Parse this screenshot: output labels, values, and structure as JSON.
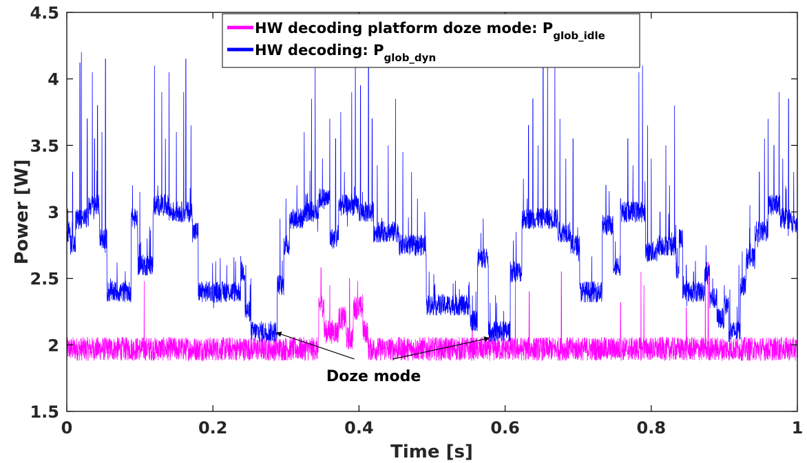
{
  "chart_data": {
    "type": "line",
    "xlabel": "Time [s]",
    "ylabel": "Power [W]",
    "xlim": [
      0,
      1
    ],
    "ylim": [
      1.5,
      4.5
    ],
    "xticks": [
      "0",
      "0.2",
      "0.4",
      "0.6",
      "0.8",
      "1"
    ],
    "yticks": [
      "1.5",
      "2",
      "2.5",
      "3",
      "3.5",
      "4",
      "4.5"
    ],
    "grid": false,
    "legend_position": "top-center",
    "annotation": {
      "text": "Doze mode",
      "targets": [
        {
          "x": 0.288,
          "y": 2.09
        },
        {
          "x": 0.577,
          "y": 2.05
        }
      ],
      "text_at": {
        "x": 0.42,
        "y": 1.78
      }
    },
    "series": [
      {
        "name": "HW decoding platform doze mode: P",
        "name_sub": "glob_idle",
        "color": "#ff00ff",
        "baseline": 1.97,
        "noise": 0.09,
        "levels": [
          [
            0.0,
            0.345,
            1.97
          ],
          [
            0.345,
            0.352,
            2.3
          ],
          [
            0.352,
            0.372,
            2.1
          ],
          [
            0.372,
            0.382,
            2.2
          ],
          [
            0.382,
            0.392,
            2.05
          ],
          [
            0.392,
            0.405,
            2.28
          ],
          [
            0.405,
            0.412,
            2.1
          ],
          [
            0.412,
            1.0,
            1.97
          ]
        ],
        "spikes": [
          [
            0.106,
            2.48
          ],
          [
            0.348,
            2.58
          ],
          [
            0.36,
            2.45
          ],
          [
            0.387,
            2.5
          ],
          [
            0.398,
            2.48
          ],
          [
            0.405,
            2.38
          ],
          [
            0.555,
            2.26
          ],
          [
            0.614,
            2.52
          ],
          [
            0.633,
            2.4
          ],
          [
            0.677,
            2.55
          ],
          [
            0.758,
            2.32
          ],
          [
            0.786,
            2.55
          ],
          [
            0.79,
            2.45
          ],
          [
            0.848,
            2.28
          ],
          [
            0.874,
            2.56
          ],
          [
            0.878,
            2.62
          ]
        ]
      },
      {
        "name": "HW decoding: P",
        "name_sub": "glob_dyn",
        "color": "#0000ff",
        "noise": 0.08,
        "levels": [
          [
            0.0,
            0.005,
            2.85
          ],
          [
            0.005,
            0.012,
            2.75
          ],
          [
            0.012,
            0.03,
            2.95
          ],
          [
            0.03,
            0.045,
            3.05
          ],
          [
            0.045,
            0.055,
            2.8
          ],
          [
            0.055,
            0.088,
            2.4
          ],
          [
            0.088,
            0.097,
            2.95
          ],
          [
            0.097,
            0.118,
            2.6
          ],
          [
            0.118,
            0.14,
            3.05
          ],
          [
            0.14,
            0.172,
            3.0
          ],
          [
            0.172,
            0.18,
            2.85
          ],
          [
            0.18,
            0.238,
            2.4
          ],
          [
            0.238,
            0.244,
            2.55
          ],
          [
            0.244,
            0.252,
            2.25
          ],
          [
            0.252,
            0.288,
            2.1
          ],
          [
            0.288,
            0.297,
            2.45
          ],
          [
            0.297,
            0.305,
            2.75
          ],
          [
            0.305,
            0.325,
            2.95
          ],
          [
            0.325,
            0.345,
            3.0
          ],
          [
            0.345,
            0.36,
            3.1
          ],
          [
            0.36,
            0.372,
            2.8
          ],
          [
            0.372,
            0.4,
            3.05
          ],
          [
            0.4,
            0.42,
            3.0
          ],
          [
            0.42,
            0.455,
            2.85
          ],
          [
            0.455,
            0.492,
            2.75
          ],
          [
            0.492,
            0.552,
            2.3
          ],
          [
            0.552,
            0.562,
            2.18
          ],
          [
            0.562,
            0.577,
            2.65
          ],
          [
            0.577,
            0.607,
            2.1
          ],
          [
            0.607,
            0.623,
            2.55
          ],
          [
            0.623,
            0.64,
            2.95
          ],
          [
            0.64,
            0.672,
            2.95
          ],
          [
            0.672,
            0.69,
            2.85
          ],
          [
            0.69,
            0.702,
            2.75
          ],
          [
            0.702,
            0.733,
            2.4
          ],
          [
            0.733,
            0.748,
            2.9
          ],
          [
            0.748,
            0.758,
            2.6
          ],
          [
            0.758,
            0.792,
            3.0
          ],
          [
            0.792,
            0.808,
            2.7
          ],
          [
            0.808,
            0.834,
            2.75
          ],
          [
            0.834,
            0.838,
            2.55
          ],
          [
            0.838,
            0.843,
            2.8
          ],
          [
            0.843,
            0.873,
            2.4
          ],
          [
            0.873,
            0.88,
            2.55
          ],
          [
            0.88,
            0.89,
            2.35
          ],
          [
            0.89,
            0.9,
            2.2
          ],
          [
            0.9,
            0.906,
            2.3
          ],
          [
            0.906,
            0.922,
            2.1
          ],
          [
            0.922,
            0.93,
            2.45
          ],
          [
            0.93,
            0.942,
            2.65
          ],
          [
            0.942,
            0.96,
            2.85
          ],
          [
            0.96,
            0.976,
            3.05
          ],
          [
            0.976,
            0.992,
            2.95
          ],
          [
            0.992,
            1.0,
            2.9
          ]
        ],
        "spikes": [
          [
            0.008,
            3.3
          ],
          [
            0.018,
            4.12
          ],
          [
            0.02,
            4.2
          ],
          [
            0.028,
            3.7
          ],
          [
            0.035,
            4.05
          ],
          [
            0.038,
            3.55
          ],
          [
            0.042,
            3.8
          ],
          [
            0.048,
            3.6
          ],
          [
            0.053,
            4.15
          ],
          [
            0.09,
            3.2
          ],
          [
            0.1,
            3.15
          ],
          [
            0.11,
            2.8
          ],
          [
            0.12,
            4.1
          ],
          [
            0.13,
            3.9
          ],
          [
            0.135,
            3.55
          ],
          [
            0.14,
            4.05
          ],
          [
            0.15,
            3.6
          ],
          [
            0.16,
            3.9
          ],
          [
            0.163,
            4.15
          ],
          [
            0.17,
            3.65
          ],
          [
            0.245,
            2.6
          ],
          [
            0.252,
            2.5
          ],
          [
            0.292,
            2.95
          ],
          [
            0.3,
            3.1
          ],
          [
            0.315,
            3.2
          ],
          [
            0.325,
            3.6
          ],
          [
            0.335,
            3.85
          ],
          [
            0.34,
            4.1
          ],
          [
            0.35,
            3.4
          ],
          [
            0.36,
            3.7
          ],
          [
            0.368,
            3.55
          ],
          [
            0.375,
            3.75
          ],
          [
            0.38,
            3.3
          ],
          [
            0.39,
            3.9
          ],
          [
            0.395,
            4.28
          ],
          [
            0.402,
            3.95
          ],
          [
            0.413,
            4.35
          ],
          [
            0.418,
            3.7
          ],
          [
            0.425,
            3.35
          ],
          [
            0.44,
            3.5
          ],
          [
            0.45,
            3.85
          ],
          [
            0.46,
            3.45
          ],
          [
            0.472,
            3.3
          ],
          [
            0.48,
            3.1
          ],
          [
            0.49,
            3.0
          ],
          [
            0.55,
            2.45
          ],
          [
            0.56,
            2.4
          ],
          [
            0.57,
            2.95
          ],
          [
            0.575,
            2.7
          ],
          [
            0.615,
            2.85
          ],
          [
            0.625,
            3.25
          ],
          [
            0.632,
            3.65
          ],
          [
            0.638,
            3.85
          ],
          [
            0.645,
            3.5
          ],
          [
            0.652,
            4.3
          ],
          [
            0.658,
            4.2
          ],
          [
            0.668,
            4.1
          ],
          [
            0.675,
            3.7
          ],
          [
            0.683,
            3.4
          ],
          [
            0.693,
            3.55
          ],
          [
            0.738,
            3.2
          ],
          [
            0.745,
            2.95
          ],
          [
            0.758,
            3.1
          ],
          [
            0.768,
            3.55
          ],
          [
            0.775,
            3.35
          ],
          [
            0.783,
            4.05
          ],
          [
            0.788,
            4.1
          ],
          [
            0.795,
            3.65
          ],
          [
            0.8,
            3.4
          ],
          [
            0.812,
            3.0
          ],
          [
            0.82,
            3.5
          ],
          [
            0.825,
            3.2
          ],
          [
            0.832,
            3.8
          ],
          [
            0.848,
            2.6
          ],
          [
            0.858,
            2.55
          ],
          [
            0.875,
            2.75
          ],
          [
            0.884,
            2.5
          ],
          [
            0.9,
            2.45
          ],
          [
            0.92,
            2.6
          ],
          [
            0.935,
            3.05
          ],
          [
            0.948,
            3.3
          ],
          [
            0.955,
            3.55
          ],
          [
            0.96,
            3.7
          ],
          [
            0.968,
            3.5
          ],
          [
            0.975,
            3.9
          ],
          [
            0.98,
            3.4
          ],
          [
            0.988,
            3.85
          ],
          [
            0.995,
            3.3
          ]
        ]
      }
    ]
  }
}
